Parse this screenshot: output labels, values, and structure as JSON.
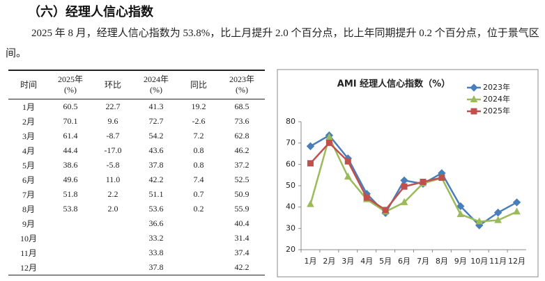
{
  "heading": "（六）经理人信心指数",
  "paragraph": "2025 年 8 月，经理人信心指数为 53.8%，比上月提升 2.0 个百分点，比上年同期提升 0.2 个百分点，位于景气区间。",
  "table": {
    "header": [
      "时间",
      "2025年\n(%)",
      "环比",
      "2024年\n(%)",
      "同比",
      "2023年\n(%)"
    ],
    "rows": [
      [
        "1月",
        "60.5",
        "22.7",
        "41.3",
        "19.2",
        "68.5"
      ],
      [
        "2月",
        "70.1",
        "9.6",
        "72.7",
        "-2.6",
        "73.6"
      ],
      [
        "3月",
        "61.4",
        "-8.7",
        "54.2",
        "7.2",
        "62.8"
      ],
      [
        "4月",
        "44.4",
        "-17.0",
        "43.6",
        "0.8",
        "46.2"
      ],
      [
        "5月",
        "38.6",
        "-5.8",
        "37.8",
        "0.8",
        "37.2"
      ],
      [
        "6月",
        "49.6",
        "11.0",
        "42.2",
        "7.4",
        "52.5"
      ],
      [
        "7月",
        "51.8",
        "2.2",
        "51.1",
        "0.7",
        "50.9"
      ],
      [
        "8月",
        "53.8",
        "2.0",
        "53.6",
        "0.2",
        "55.9"
      ],
      [
        "9月",
        null,
        null,
        "36.6",
        null,
        "40.4"
      ],
      [
        "10月",
        null,
        null,
        "33.2",
        null,
        "31.4"
      ],
      [
        "11月",
        null,
        null,
        "33.8",
        null,
        "37.4"
      ],
      [
        "12月",
        null,
        null,
        "37.8",
        null,
        "42.2"
      ]
    ]
  },
  "chart_data": {
    "type": "line",
    "title": "AMI 经理人信心指数（%）",
    "categories": [
      "1月",
      "2月",
      "3月",
      "4月",
      "5月",
      "6月",
      "7月",
      "8月",
      "9月",
      "10月",
      "11月",
      "12月"
    ],
    "series": [
      {
        "name": "2023年",
        "color": "#4a7ebb",
        "marker": "diamond",
        "values": [
          68.5,
          73.6,
          62.8,
          46.2,
          37.2,
          52.5,
          50.9,
          55.9,
          40.4,
          31.4,
          37.4,
          42.2
        ]
      },
      {
        "name": "2024年",
        "color": "#9bbb59",
        "marker": "triangle",
        "values": [
          41.3,
          72.7,
          54.2,
          43.6,
          37.8,
          42.2,
          51.1,
          53.6,
          36.6,
          33.2,
          33.8,
          37.8
        ]
      },
      {
        "name": "2025年",
        "color": "#c0504d",
        "marker": "square",
        "values": [
          60.5,
          70.1,
          61.4,
          44.4,
          38.6,
          49.6,
          51.8,
          53.8,
          null,
          null,
          null,
          null
        ]
      }
    ],
    "ylim": [
      20,
      80
    ],
    "yticks": [
      20,
      30,
      40,
      50,
      60,
      70,
      80
    ],
    "legend": "top-right"
  }
}
